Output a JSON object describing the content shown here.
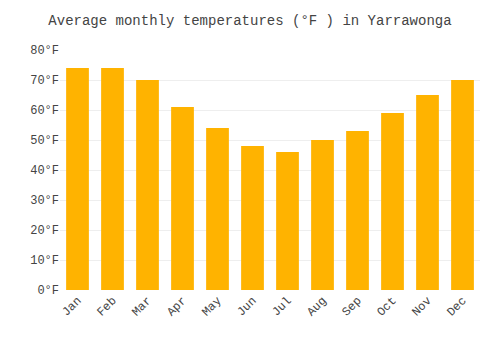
{
  "chart_data": {
    "type": "bar",
    "title": "Average monthly temperatures (°F ) in Yarrawonga",
    "categories": [
      "Jan",
      "Feb",
      "Mar",
      "Apr",
      "May",
      "Jun",
      "Jul",
      "Aug",
      "Sep",
      "Oct",
      "Nov",
      "Dec"
    ],
    "values": [
      74,
      74,
      70,
      61,
      54,
      48,
      46,
      50,
      53,
      59,
      65,
      70
    ],
    "color": "#FFB300",
    "ylim": [
      0,
      80
    ],
    "yticks": [
      {
        "value": 0,
        "label": "0°F"
      },
      {
        "value": 10,
        "label": "10°F"
      },
      {
        "value": 20,
        "label": "20°F"
      },
      {
        "value": 30,
        "label": "30°F"
      },
      {
        "value": 40,
        "label": "40°F"
      },
      {
        "value": 50,
        "label": "50°F"
      },
      {
        "value": 60,
        "label": "60°F"
      },
      {
        "value": 70,
        "label": "70°F"
      },
      {
        "value": 80,
        "label": "80°F"
      }
    ],
    "grid": true
  }
}
